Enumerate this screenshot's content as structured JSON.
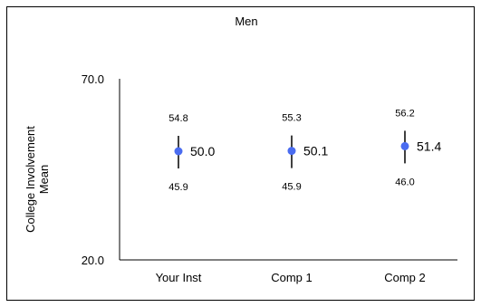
{
  "chart_data": {
    "type": "scatter",
    "title": "Men",
    "ylabel_line1": "College Involvement",
    "ylabel_line2": "Mean",
    "ylim": [
      20.0,
      70.0
    ],
    "yticks": [
      "70.0",
      "20.0"
    ],
    "categories": [
      "Your Inst",
      "Comp 1",
      "Comp 2"
    ],
    "series": [
      {
        "mean": [
          50.0,
          50.1,
          51.4
        ],
        "upper": [
          54.8,
          55.3,
          56.2
        ],
        "lower": [
          45.9,
          45.9,
          46.0
        ],
        "mean_labels": [
          "50.0",
          "50.1",
          "51.4"
        ],
        "upper_labels": [
          "54.8",
          "55.3",
          "56.2"
        ],
        "lower_labels": [
          "45.9",
          "45.9",
          "46.0"
        ]
      }
    ],
    "colors": {
      "point": "#4a6cf0",
      "errorbar": "#000000",
      "axis": "#000000",
      "border": "#000000"
    },
    "grid": false,
    "legend": "none"
  }
}
